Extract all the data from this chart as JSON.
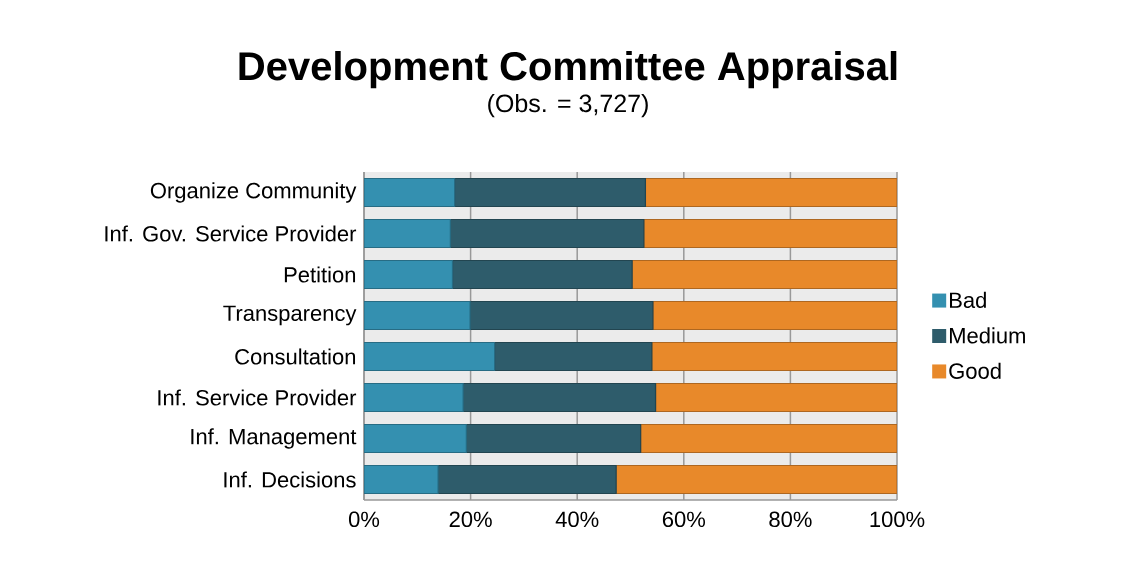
{
  "chart_data": {
    "type": "bar",
    "orientation": "horizontal",
    "stacked": true,
    "title": "Development Committee Appraisal",
    "subtitle": "(Obs. = 3,727)",
    "categories": [
      "Organize Community",
      "Inf. Gov. Service Provider",
      "Petition",
      "Transparency",
      "Consultation",
      "Inf. Service Provider",
      "Inf. Management",
      "Inf. Decisions"
    ],
    "series": [
      {
        "name": "Bad",
        "color": "#3490b0",
        "values": [
          17.0,
          16.2,
          16.6,
          19.9,
          24.5,
          18.6,
          19.2,
          13.9
        ]
      },
      {
        "name": "Medium",
        "color": "#2e5c6b",
        "values": [
          35.8,
          36.3,
          33.7,
          34.3,
          29.5,
          36.1,
          32.7,
          33.4
        ]
      },
      {
        "name": "Good",
        "color": "#e8892a",
        "values": [
          47.2,
          47.5,
          49.7,
          45.8,
          46.0,
          45.3,
          48.1,
          52.7
        ]
      }
    ],
    "xlim": [
      0,
      100
    ],
    "xticks": [
      {
        "value": 0,
        "label": "0%"
      },
      {
        "value": 20,
        "label": "20%"
      },
      {
        "value": 40,
        "label": "40%"
      },
      {
        "value": 60,
        "label": "60%"
      },
      {
        "value": 80,
        "label": "80%"
      },
      {
        "value": 100,
        "label": "100%"
      }
    ],
    "grid": "x",
    "legend": "right"
  }
}
